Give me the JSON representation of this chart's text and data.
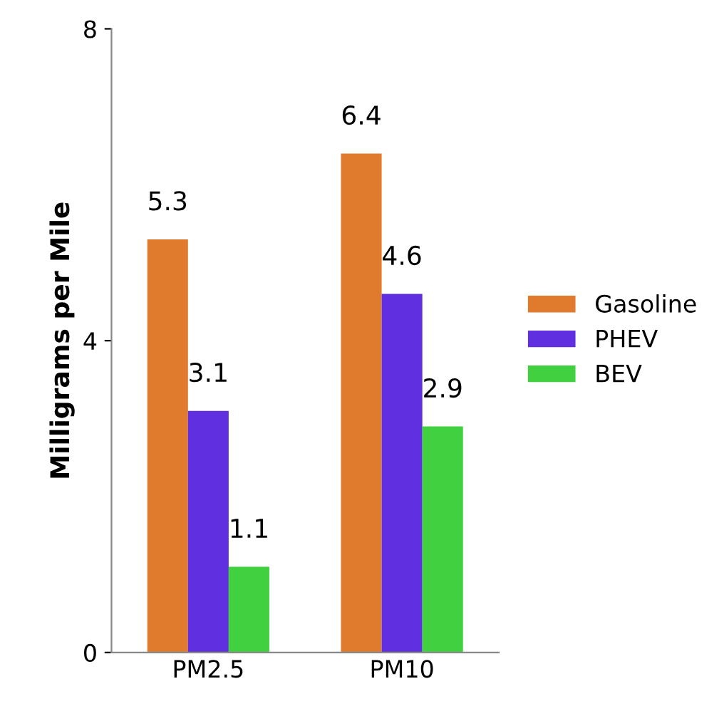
{
  "chart_data": {
    "type": "bar",
    "ylabel": "Milligrams per Mile",
    "categories": [
      "PM2.5",
      "PM10"
    ],
    "series": [
      {
        "name": "Gasoline",
        "color": "#e07b2e",
        "values": [
          5.3,
          6.4
        ]
      },
      {
        "name": "PHEV",
        "color": "#6030e0",
        "values": [
          3.1,
          4.6
        ]
      },
      {
        "name": "BEV",
        "color": "#40d040",
        "values": [
          1.1,
          2.9
        ]
      }
    ],
    "ylim": [
      0,
      8
    ],
    "yticks": [
      0,
      4,
      8
    ],
    "data_labels": true,
    "legend": "right",
    "grid": false
  }
}
